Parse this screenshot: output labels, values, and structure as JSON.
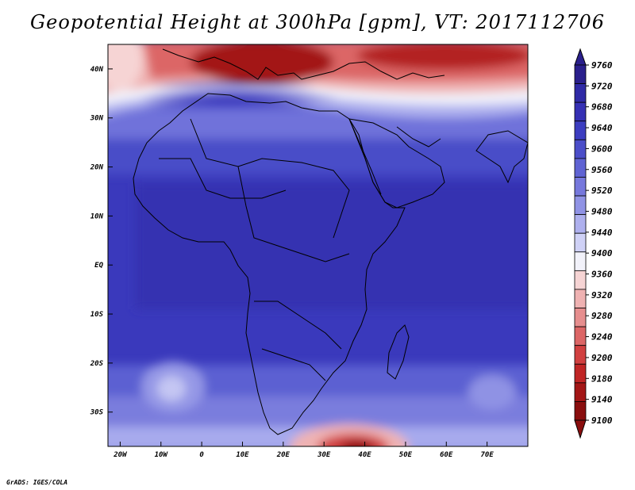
{
  "title": "Geopotential Height at 300hPa [gpm], VT: 2017112706",
  "credit": "GrADS: IGES/COLA",
  "chart_data": {
    "type": "heatmap",
    "variable": "Geopotential Height",
    "level": "300hPa",
    "units": "gpm",
    "valid_time": "2017112706",
    "lon_range": [
      -23,
      80
    ],
    "lat_range": [
      -37,
      45
    ],
    "x_ticks": [
      {
        "value": -20,
        "label": "20W"
      },
      {
        "value": -10,
        "label": "10W"
      },
      {
        "value": 0,
        "label": "0"
      },
      {
        "value": 10,
        "label": "10E"
      },
      {
        "value": 20,
        "label": "20E"
      },
      {
        "value": 30,
        "label": "30E"
      },
      {
        "value": 40,
        "label": "40E"
      },
      {
        "value": 50,
        "label": "50E"
      },
      {
        "value": 60,
        "label": "60E"
      },
      {
        "value": 70,
        "label": "70E"
      }
    ],
    "y_ticks": [
      {
        "value": 40,
        "label": "40N"
      },
      {
        "value": 30,
        "label": "30N"
      },
      {
        "value": 20,
        "label": "20N"
      },
      {
        "value": 10,
        "label": "10N"
      },
      {
        "value": 0,
        "label": "EQ"
      },
      {
        "value": -10,
        "label": "10S"
      },
      {
        "value": -20,
        "label": "20S"
      },
      {
        "value": -30,
        "label": "30S"
      }
    ],
    "colorbar": {
      "min": 9100,
      "max": 9760,
      "labels": [
        9760,
        9720,
        9680,
        9640,
        9600,
        9560,
        9520,
        9480,
        9440,
        9400,
        9360,
        9320,
        9280,
        9240,
        9200,
        9180,
        9140,
        9100
      ],
      "colors": [
        "#2a1f8c",
        "#2f2aa6",
        "#3530b4",
        "#3c3dc0",
        "#4b4ec9",
        "#5f63d3",
        "#7678dc",
        "#9093e5",
        "#aeb0ee",
        "#cfd1f6",
        "#f2f2fa",
        "#f6d4d4",
        "#efb2b2",
        "#e68e8e",
        "#dc6666",
        "#d14040",
        "#c02525",
        "#a31616",
        "#8a0e0e"
      ]
    },
    "features": [
      {
        "name": "mediterranean-high-heights-dip",
        "lon": 15,
        "lat": 42,
        "value_approx": 9130
      },
      {
        "name": "south-africa-low-center",
        "lon": 40,
        "lat": -37,
        "value_approx": 9100
      },
      {
        "name": "south-atlantic-high",
        "lon": -4,
        "lat": -25,
        "value_approx": 9480
      }
    ]
  }
}
